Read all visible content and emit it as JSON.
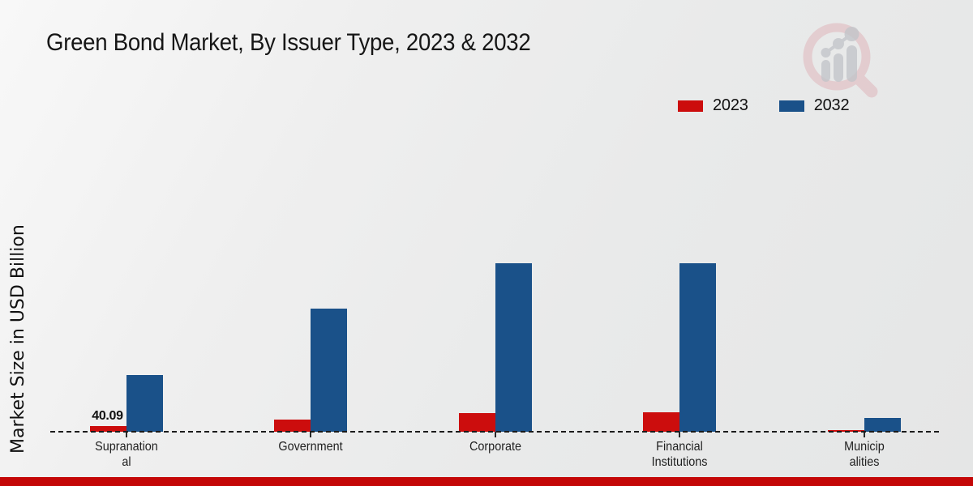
{
  "title": "Green Bond Market, By Issuer Type, 2023 & 2032",
  "y_axis_label": "Market Size in USD Billion",
  "legend": {
    "items": [
      {
        "label": "2023",
        "color": "#cc0d0d"
      },
      {
        "label": "2032",
        "color": "#1a5189"
      }
    ]
  },
  "chart_data": {
    "type": "bar",
    "title": "Green Bond Market, By Issuer Type, 2023 & 2032",
    "ylabel": "Market Size in USD Billion",
    "xlabel": "",
    "categories": [
      "Supranational",
      "Government",
      "Corporate",
      "Financial Institutions",
      "Municipalities"
    ],
    "category_label_lines": [
      [
        "Supranation",
        "al"
      ],
      [
        "Government"
      ],
      [
        "Corporate"
      ],
      [
        "Financial",
        "Institutions"
      ],
      [
        "Municip",
        "alities"
      ]
    ],
    "series": [
      {
        "name": "2023",
        "color": "#cc0d0d",
        "values": [
          40.09,
          85,
          130,
          140,
          9
        ]
      },
      {
        "name": "2032",
        "color": "#1a5189",
        "values": [
          400,
          870,
          1190,
          1190,
          95
        ]
      }
    ],
    "data_labels": [
      {
        "series_index": 0,
        "category_index": 0,
        "text": "40.09"
      }
    ],
    "ylim": [
      0,
      1250
    ],
    "grid": false,
    "baseline_style": "dashed",
    "legend_position": "top-right"
  },
  "watermark": {
    "name": "market-research-magnifier-logo",
    "ring_color": "#dfb6bb",
    "bars_color": "#c3c5ca"
  },
  "footer_bar_color": "#c40707"
}
